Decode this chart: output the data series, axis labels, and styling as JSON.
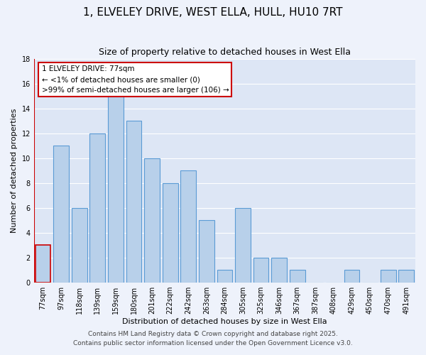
{
  "title": "1, ELVELEY DRIVE, WEST ELLA, HULL, HU10 7RT",
  "subtitle": "Size of property relative to detached houses in West Ella",
  "xlabel": "Distribution of detached houses by size in West Ella",
  "ylabel": "Number of detached properties",
  "bin_labels": [
    "77sqm",
    "97sqm",
    "118sqm",
    "139sqm",
    "159sqm",
    "180sqm",
    "201sqm",
    "222sqm",
    "242sqm",
    "263sqm",
    "284sqm",
    "305sqm",
    "325sqm",
    "346sqm",
    "367sqm",
    "387sqm",
    "408sqm",
    "429sqm",
    "450sqm",
    "470sqm",
    "491sqm"
  ],
  "values": [
    3,
    11,
    6,
    12,
    15,
    13,
    10,
    8,
    9,
    5,
    1,
    6,
    2,
    2,
    1,
    0,
    0,
    1,
    0,
    1,
    1
  ],
  "highlight_index": 0,
  "bar_color": "#b8d0ea",
  "bar_edge_color": "#5b9bd5",
  "highlight_edge_color": "#cc0000",
  "annotation_box_edge": "#cc0000",
  "annotation_lines": [
    "1 ELVELEY DRIVE: 77sqm",
    "← <1% of detached houses are smaller (0)",
    ">99% of semi-detached houses are larger (106) →"
  ],
  "ylim": [
    0,
    18
  ],
  "yticks": [
    0,
    2,
    4,
    6,
    8,
    10,
    12,
    14,
    16,
    18
  ],
  "footer_lines": [
    "Contains HM Land Registry data © Crown copyright and database right 2025.",
    "Contains public sector information licensed under the Open Government Licence v3.0."
  ],
  "background_color": "#eef2fb",
  "plot_bg_color": "#dde6f5",
  "grid_color": "#ffffff",
  "title_fontsize": 11,
  "subtitle_fontsize": 9,
  "axis_label_fontsize": 8,
  "tick_fontsize": 7,
  "annotation_fontsize": 7.5,
  "footer_fontsize": 6.5
}
